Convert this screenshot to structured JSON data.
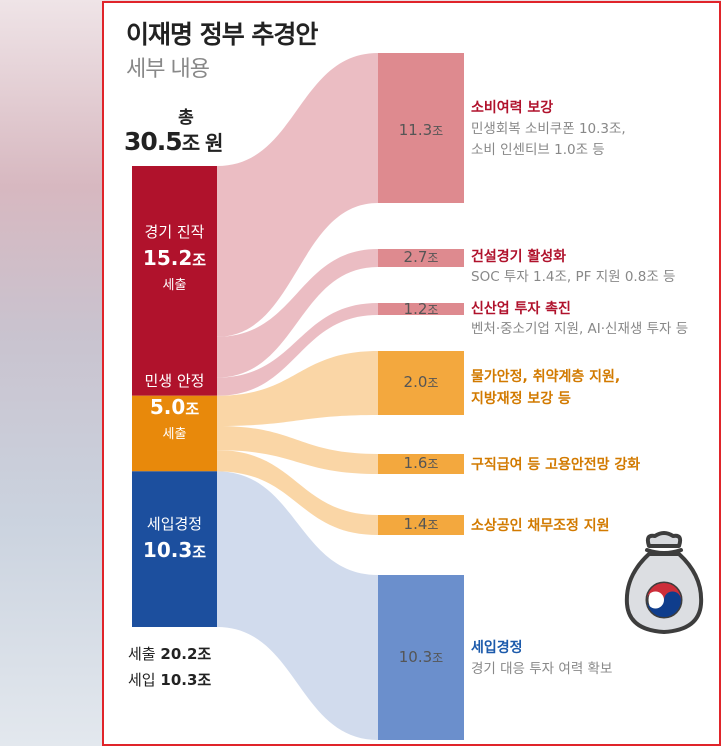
{
  "title": "이재명 정부 추경안",
  "subtitle": "세부 내용",
  "total": {
    "label": "총",
    "value": "30.5",
    "unit": "조 원"
  },
  "colors": {
    "red": "#b0122c",
    "red_light": "#e8b2b9",
    "red_target": "#de8a8f",
    "orange": "#e8890b",
    "orange_light": "#f9cf96",
    "orange_target": "#f3a83e",
    "blue": "#1c4f9e",
    "blue_light": "#c9d5ea",
    "blue_target": "#6b8fcc"
  },
  "sources": [
    {
      "name": "경기 진작",
      "value": "15.2",
      "unit": "조",
      "sub": "세출"
    },
    {
      "name": "민생 안정",
      "value": "5.0",
      "unit": "조",
      "sub": "세출"
    },
    {
      "name": "세입경정",
      "value": "10.3",
      "unit": "조",
      "sub": ""
    }
  ],
  "bottom_note": [
    {
      "label": "세출",
      "value": "20.2조"
    },
    {
      "label": "세입",
      "value": "10.3조"
    }
  ],
  "targets": [
    {
      "value": "11.3",
      "unit": "조",
      "title": "소비여력 보강",
      "desc": [
        "민생회복 소비쿠폰 10.3조,",
        "소비 인센티브 1.0조 등"
      ]
    },
    {
      "value": "2.7",
      "unit": "조",
      "title": "건설경기 활성화",
      "desc": [
        "SOC 투자 1.4조, PF 지원 0.8조 등"
      ]
    },
    {
      "value": "1.2",
      "unit": "조",
      "title": "신산업 투자 촉진",
      "desc": [
        "벤처·중소기업 지원, AI·신재생 투자 등"
      ]
    },
    {
      "value": "2.0",
      "unit": "조",
      "title": "물가안정, 취약계층 지원,",
      "desc": [],
      "title2": "지방재정 보강 등"
    },
    {
      "value": "1.6",
      "unit": "조",
      "title": "구직급여 등 고용안전망 강화",
      "desc": []
    },
    {
      "value": "1.4",
      "unit": "조",
      "title": "소상공인 채무조정 지원",
      "desc": []
    },
    {
      "value": "10.3",
      "unit": "조",
      "title": "세입경정",
      "desc": [
        "경기 대응 투자 여력 확보"
      ]
    }
  ],
  "chart_data": {
    "type": "sankey",
    "title": "이재명 정부 추경안",
    "subtitle": "세부 내용",
    "total": 30.5,
    "unit": "조 원",
    "nodes_source": [
      {
        "name": "경기 진작",
        "value": 15.2
      },
      {
        "name": "민생 안정",
        "value": 5.0
      },
      {
        "name": "세입경정",
        "value": 10.3
      }
    ],
    "links": [
      {
        "source": "경기 진작",
        "target": "소비여력 보강",
        "value": 11.3
      },
      {
        "source": "경기 진작",
        "target": "건설경기 활성화",
        "value": 2.7
      },
      {
        "source": "경기 진작",
        "target": "신산업 투자 촉진",
        "value": 1.2
      },
      {
        "source": "민생 안정",
        "target": "물가안정, 취약계층 지원, 지방재정 보강 등",
        "value": 2.0
      },
      {
        "source": "민생 안정",
        "target": "구직급여 등 고용안전망 강화",
        "value": 1.6
      },
      {
        "source": "민생 안정",
        "target": "소상공인 채무조정 지원",
        "value": 1.4
      },
      {
        "source": "세입경정",
        "target": "세입경정",
        "value": 10.3
      }
    ]
  }
}
